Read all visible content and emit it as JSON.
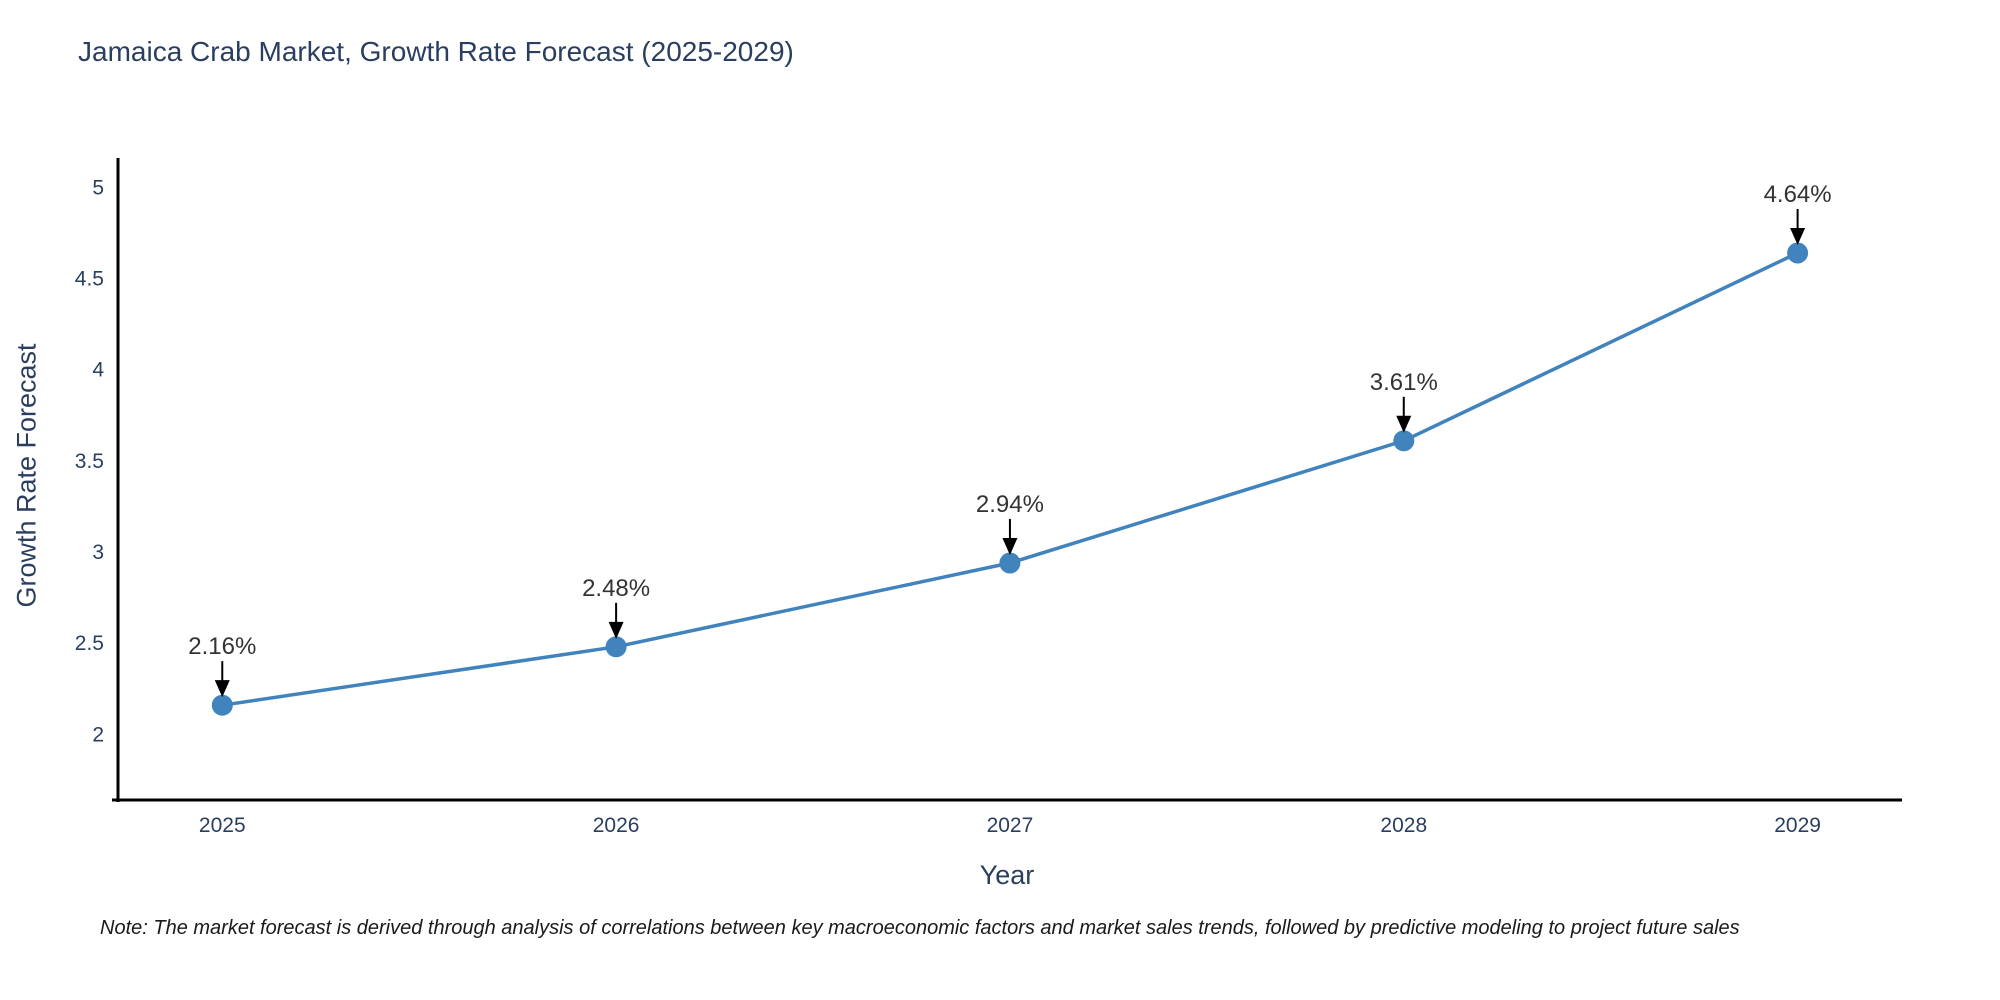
{
  "chart_data": {
    "type": "line",
    "title": "Jamaica Crab Market, Growth Rate Forecast (2025-2029)",
    "xlabel": "Year",
    "ylabel": "Growth Rate Forecast",
    "x": [
      2025,
      2026,
      2027,
      2028,
      2029
    ],
    "y": [
      2.16,
      2.48,
      2.94,
      3.61,
      4.64
    ],
    "point_labels": [
      "2.16%",
      "2.48%",
      "2.94%",
      "3.61%",
      "4.64%"
    ],
    "yticks": [
      "2",
      "2.5",
      "3",
      "3.5",
      "4",
      "4.5",
      "5"
    ],
    "ytick_values": [
      2,
      2.5,
      3,
      3.5,
      4,
      4.5,
      5
    ],
    "xlim": [
      2024.72,
      2029.26
    ],
    "ylim": [
      1.64,
      5.15
    ],
    "grid": false,
    "legend": "none",
    "annotation_style": "down-arrow-to-point",
    "colors": {
      "line": "#4183bd",
      "marker": "#4183bd",
      "text": "#2a3f5f",
      "annotation_text": "#333333",
      "annotation_arrow": "#000000",
      "axis_line": "#000000",
      "background": "#ffffff"
    },
    "note": "Note: The market forecast is derived through analysis of correlations between key macroeconomic factors and market sales trends, followed by predictive modeling to project future sales"
  }
}
